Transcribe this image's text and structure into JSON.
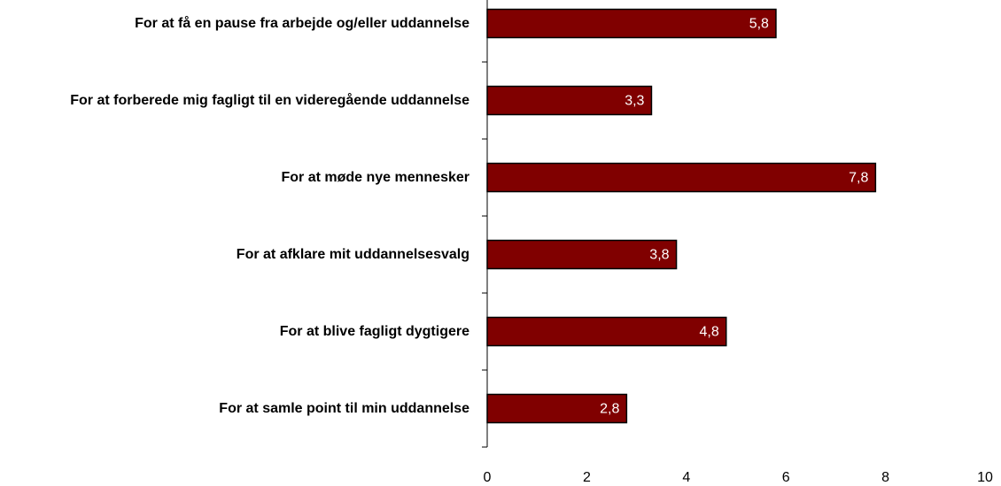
{
  "chart_data": {
    "type": "barh",
    "categories": [
      "For at få en pause fra arbejde og/eller uddannelse",
      "For at forberede mig fagligt til en videregående uddannelse",
      "For at møde nye mennesker",
      "For at afklare mit uddannelsesvalg",
      "For at blive fagligt dygtigere",
      "For at samle point til min uddannelse"
    ],
    "values": [
      5.8,
      3.3,
      7.8,
      3.8,
      4.8,
      2.8
    ],
    "value_labels": [
      "5,8",
      "3,3",
      "7,8",
      "3,8",
      "4,8",
      "2,8"
    ],
    "color": "#800000",
    "xlim": [
      0,
      10
    ],
    "xticks": [
      0,
      2,
      4,
      6,
      8,
      10
    ]
  }
}
